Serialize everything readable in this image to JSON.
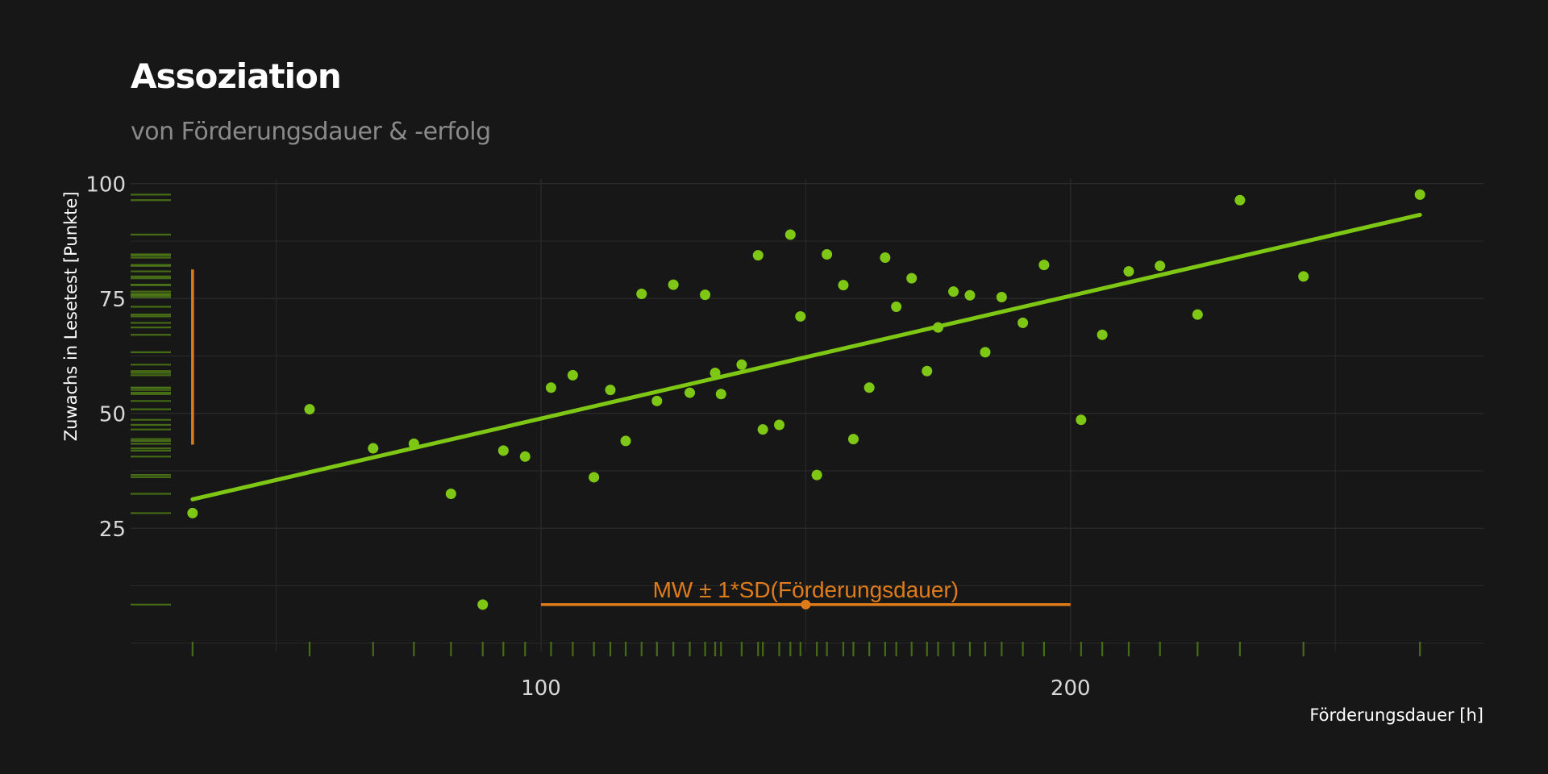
{
  "chart_data": {
    "type": "scatter",
    "title": "Assoziation",
    "subtitle": "von Förderungsdauer & -erfolg",
    "xlabel": "Förderungsdauer [h]",
    "ylabel": "Zuwachs in Lesetest [Punkte]",
    "xlim": [
      22.5,
      278
    ],
    "ylim": [
      -1.8,
      101
    ],
    "x_ticks": [
      100,
      200
    ],
    "y_ticks": [
      25,
      50,
      75,
      100
    ],
    "grid": true,
    "colors": {
      "points": "#7ec815",
      "trend": "#7ec815",
      "rug": "#4f7a16",
      "annotation": "#e07b1a",
      "grid": "#2a2a2a",
      "background": "#171717"
    },
    "points": [
      {
        "x": 34.2,
        "y": 28.3
      },
      {
        "x": 56.3,
        "y": 50.9
      },
      {
        "x": 68.3,
        "y": 42.4
      },
      {
        "x": 76.0,
        "y": 43.4
      },
      {
        "x": 83.0,
        "y": 32.5
      },
      {
        "x": 89.0,
        "y": 8.4
      },
      {
        "x": 92.9,
        "y": 41.9
      },
      {
        "x": 97.0,
        "y": 40.6
      },
      {
        "x": 101.9,
        "y": 55.6
      },
      {
        "x": 106.0,
        "y": 58.3
      },
      {
        "x": 110.0,
        "y": 36.1
      },
      {
        "x": 113.1,
        "y": 55.1
      },
      {
        "x": 116.0,
        "y": 44.0
      },
      {
        "x": 119.0,
        "y": 76.0
      },
      {
        "x": 121.9,
        "y": 52.7
      },
      {
        "x": 125.0,
        "y": 78.0
      },
      {
        "x": 128.1,
        "y": 54.5
      },
      {
        "x": 131.0,
        "y": 75.8
      },
      {
        "x": 132.9,
        "y": 58.8
      },
      {
        "x": 134.0,
        "y": 54.2
      },
      {
        "x": 137.9,
        "y": 60.6
      },
      {
        "x": 141.0,
        "y": 84.4
      },
      {
        "x": 141.9,
        "y": 46.5
      },
      {
        "x": 145.0,
        "y": 47.5
      },
      {
        "x": 147.1,
        "y": 88.9
      },
      {
        "x": 149.0,
        "y": 71.1
      },
      {
        "x": 152.1,
        "y": 36.6
      },
      {
        "x": 154.0,
        "y": 84.6
      },
      {
        "x": 157.1,
        "y": 77.9
      },
      {
        "x": 159.0,
        "y": 44.4
      },
      {
        "x": 162.0,
        "y": 55.6
      },
      {
        "x": 165.0,
        "y": 83.9
      },
      {
        "x": 167.1,
        "y": 73.2
      },
      {
        "x": 170.0,
        "y": 79.4
      },
      {
        "x": 172.9,
        "y": 59.2
      },
      {
        "x": 175.0,
        "y": 68.7
      },
      {
        "x": 177.9,
        "y": 76.5
      },
      {
        "x": 181.0,
        "y": 75.7
      },
      {
        "x": 183.9,
        "y": 63.3
      },
      {
        "x": 187.0,
        "y": 75.3
      },
      {
        "x": 191.0,
        "y": 69.7
      },
      {
        "x": 195.0,
        "y": 82.3
      },
      {
        "x": 202.0,
        "y": 48.6
      },
      {
        "x": 206.0,
        "y": 67.1
      },
      {
        "x": 211.0,
        "y": 80.9
      },
      {
        "x": 216.9,
        "y": 82.1
      },
      {
        "x": 224.0,
        "y": 71.5
      },
      {
        "x": 232.0,
        "y": 96.4
      },
      {
        "x": 244.0,
        "y": 79.8
      },
      {
        "x": 266.0,
        "y": 97.6
      }
    ],
    "trend_line": {
      "x": [
        34.2,
        266.0
      ],
      "y": [
        31.3,
        93.2
      ]
    },
    "mean_sd_band": {
      "label": "MW ± 1*SD(Förderungsdauer)",
      "mean": 150.0,
      "low": 100.0,
      "high": 200.0,
      "y": 8.4
    },
    "y_range_bar": {
      "x": 34.2,
      "ymin": 43.2,
      "ymax": 81.3
    }
  }
}
